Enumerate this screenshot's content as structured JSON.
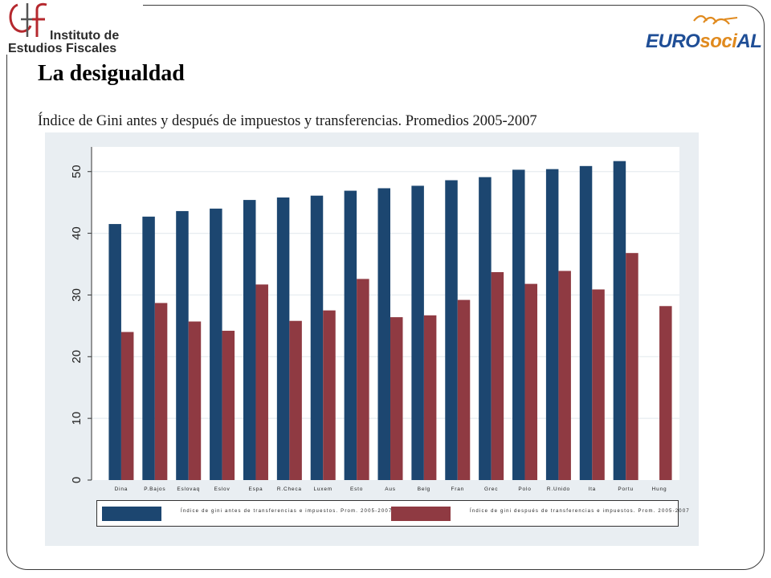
{
  "header": {
    "logo_left": {
      "line1": "Instituto de",
      "line2": "Estudios Fiscales"
    },
    "logo_right": {
      "part1": "EURO",
      "part2": "soci",
      "part3": "AL"
    }
  },
  "slide": {
    "title": "La desigualdad",
    "subtitle": "Índice de Gini antes y después de impuestos y transferencias. Promedios 2005-2007"
  },
  "colors": {
    "series_before": "#1c4670",
    "series_after": "#8f3a42",
    "panel_bg": "#e9eef2",
    "plot_bg": "#ffffff"
  },
  "chart_data": {
    "type": "bar",
    "title": "",
    "xlabel": "",
    "ylabel": "",
    "ylim": [
      0,
      54
    ],
    "yticks": [
      0,
      10,
      20,
      30,
      40,
      50
    ],
    "grid": true,
    "legend": "bottom",
    "categories": [
      "Dina",
      "P.Bajos",
      "Eslovaq",
      "Eslov",
      "Espa",
      "R.Checa",
      "Luxem",
      "Esto",
      "Aus",
      "Belg",
      "Fran",
      "Grec",
      "Polo",
      "R.Unido",
      "Ita",
      "Portu",
      "Hung"
    ],
    "series": [
      {
        "name": "Índice de gini antes de transferencias e impuestos. Prom. 2005-2007",
        "values": [
          41.5,
          42.7,
          43.6,
          44.0,
          45.4,
          45.8,
          46.1,
          46.9,
          47.3,
          47.7,
          48.6,
          49.1,
          50.3,
          50.4,
          50.9,
          51.7,
          null
        ]
      },
      {
        "name": "Índice de gini después de transferencias e impuestos. Prom. 2005-2007",
        "values": [
          24.0,
          28.7,
          25.7,
          24.2,
          31.7,
          25.8,
          27.5,
          32.6,
          26.4,
          26.7,
          29.2,
          33.7,
          31.8,
          33.9,
          30.9,
          36.8,
          28.2
        ]
      }
    ]
  }
}
